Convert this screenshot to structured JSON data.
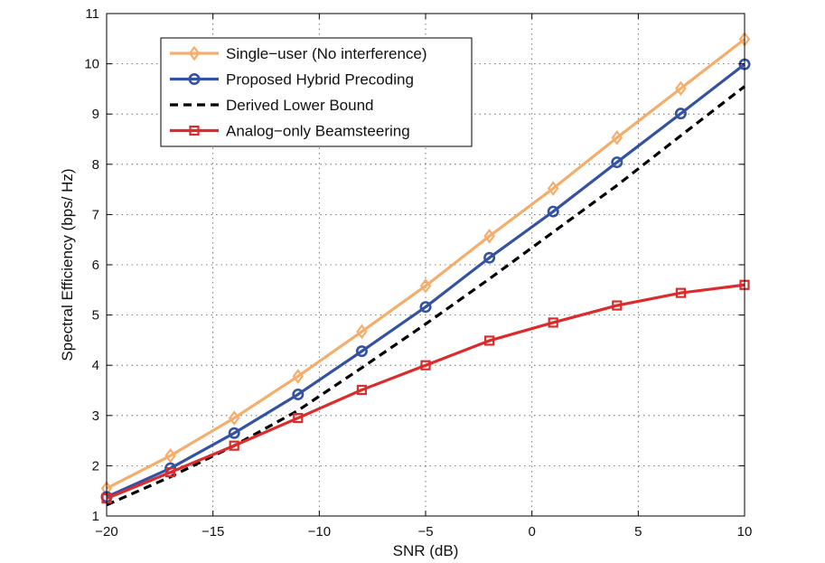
{
  "chart_data": {
    "type": "line",
    "title": "",
    "xlabel": "SNR (dB)",
    "ylabel": "Spectral Efficiency (bps/ Hz)",
    "xlim": [
      -20,
      10
    ],
    "ylim": [
      1,
      11
    ],
    "grid": true,
    "xticks": [
      -20,
      -15,
      -10,
      -5,
      0,
      5,
      10
    ],
    "xtick_labels": [
      "−20",
      "−15",
      "−10",
      "−5",
      "0",
      "5",
      "10"
    ],
    "yticks": [
      1,
      2,
      3,
      4,
      5,
      6,
      7,
      8,
      9,
      10,
      11
    ],
    "ytick_labels": [
      "1",
      "2",
      "3",
      "4",
      "5",
      "6",
      "7",
      "8",
      "9",
      "10",
      "11"
    ],
    "legend_position": "top-left",
    "x": [
      -20,
      -17,
      -14,
      -11,
      -8,
      -5,
      -2,
      1,
      4,
      7,
      10
    ],
    "series": [
      {
        "name": "Single−user (No interference)",
        "color": "#F5AD6B",
        "marker": "diamond",
        "dash": "solid",
        "values": [
          1.55,
          2.2,
          2.95,
          3.78,
          4.67,
          5.58,
          6.57,
          7.52,
          8.53,
          9.51,
          10.49
        ]
      },
      {
        "name": "Proposed Hybrid Precoding",
        "color": "#3452A3",
        "marker": "circle",
        "dash": "solid",
        "values": [
          1.38,
          1.95,
          2.65,
          3.42,
          4.28,
          5.16,
          6.14,
          7.06,
          8.04,
          9.01,
          9.99
        ]
      },
      {
        "name": "Derived Lower Bound",
        "color": "#000000",
        "marker": "none",
        "dash": "dashed",
        "values": [
          1.22,
          1.78,
          2.4,
          3.1,
          3.95,
          4.82,
          5.72,
          6.65,
          7.58,
          8.57,
          9.55
        ]
      },
      {
        "name": "Analog−only Beamsteering",
        "color": "#DC2B2B",
        "marker": "square",
        "dash": "solid",
        "values": [
          1.35,
          1.87,
          2.4,
          2.95,
          3.51,
          4.0,
          4.49,
          4.85,
          5.19,
          5.44,
          5.6
        ]
      }
    ]
  }
}
